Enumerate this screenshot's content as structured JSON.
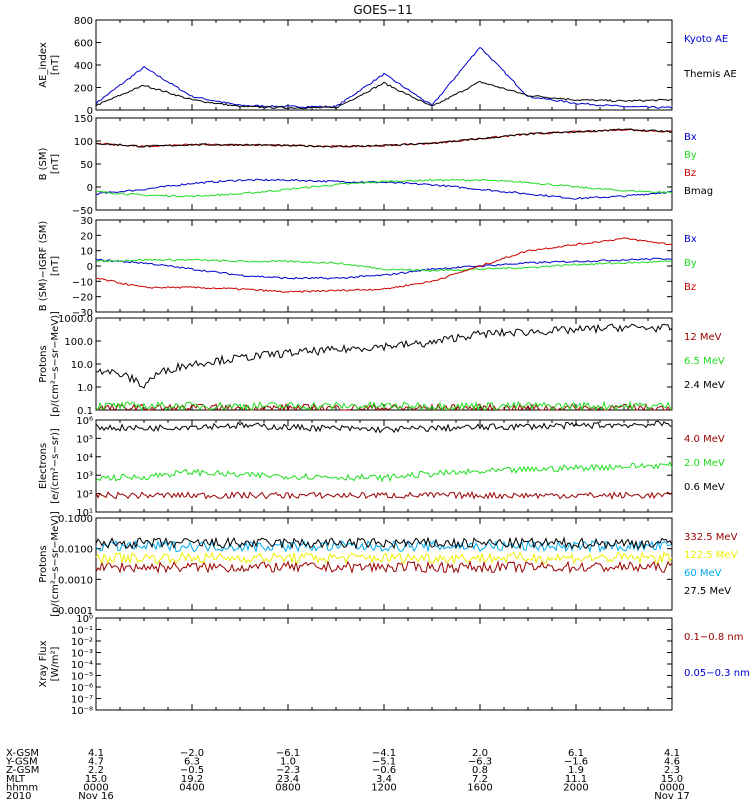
{
  "title": "GOES−11",
  "colors": {
    "black": "#000000",
    "blue": "#0000cc",
    "red": "#cc0000",
    "green": "#22dd22",
    "darkred": "#990000",
    "yellow": "#eeee00",
    "cyan": "#00aaee"
  },
  "panels": [
    {
      "id": "ae",
      "ylabel": [
        "AE_index",
        "[nT]"
      ],
      "yticks": [
        "800",
        "600",
        "400",
        "200",
        "0"
      ],
      "ylim": [
        0,
        800
      ],
      "scale": "linear",
      "legend": [
        {
          "label": "Kyoto AE",
          "color": "#0000cc"
        },
        {
          "label": "Themis AE",
          "color": "#000000"
        }
      ]
    },
    {
      "id": "bsm",
      "ylabel": [
        "B (SM)",
        "[nT]"
      ],
      "yticks": [
        "150",
        "100",
        "50",
        "0",
        "−50"
      ],
      "ylim": [
        -50,
        150
      ],
      "scale": "linear",
      "legend": [
        {
          "label": "Bx",
          "color": "#0000cc"
        },
        {
          "label": "By",
          "color": "#22dd22"
        },
        {
          "label": "Bz",
          "color": "#cc0000"
        },
        {
          "label": "Bmag",
          "color": "#000000"
        }
      ]
    },
    {
      "id": "bigrf",
      "ylabel": [
        "B (SM)−IGRF (SM)",
        "[nT]"
      ],
      "yticks": [
        "30",
        "20",
        "10",
        "0",
        "−10",
        "−20",
        "−30"
      ],
      "ylim": [
        -30,
        30
      ],
      "scale": "linear",
      "legend": [
        {
          "label": "Bx",
          "color": "#0000cc"
        },
        {
          "label": "By",
          "color": "#22dd22"
        },
        {
          "label": "Bz",
          "color": "#cc0000"
        }
      ]
    },
    {
      "id": "protons1",
      "ylabel": [
        "Protons",
        "[p/(cm²−s−sr−MeV)]"
      ],
      "yticks": [
        "1000.0",
        "100.0",
        "10.0",
        "1.0",
        "0.1"
      ],
      "ylim": [
        0.1,
        1000
      ],
      "scale": "log",
      "legend": [
        {
          "label": "12 MeV",
          "color": "#990000"
        },
        {
          "label": "6.5 MeV",
          "color": "#22dd22"
        },
        {
          "label": "2.4 MeV",
          "color": "#000000"
        }
      ]
    },
    {
      "id": "electrons",
      "ylabel": [
        "Electrons",
        "[e/(cm²−s−sr)]"
      ],
      "yticks": [
        "10⁶",
        "10⁵",
        "10⁴",
        "10³",
        "10²",
        "10¹"
      ],
      "ylim": [
        10,
        1000000
      ],
      "scale": "log",
      "legend": [
        {
          "label": "4.0 MeV",
          "color": "#990000"
        },
        {
          "label": "2.0 MeV",
          "color": "#22dd22"
        },
        {
          "label": "0.6 MeV",
          "color": "#000000"
        }
      ]
    },
    {
      "id": "protons2",
      "ylabel": [
        "Protons",
        "[p/(cm²−s−sr−MeV)]"
      ],
      "yticks": [
        "0.1000",
        "0.0100",
        "0.0010",
        "0.0001"
      ],
      "ylim": [
        0.0001,
        0.1
      ],
      "scale": "log",
      "legend": [
        {
          "label": "332.5 MeV",
          "color": "#990000"
        },
        {
          "label": "122.5 MeV",
          "color": "#eeee00"
        },
        {
          "label": "60 MeV",
          "color": "#00aaee"
        },
        {
          "label": "27.5 MeV",
          "color": "#000000"
        }
      ]
    },
    {
      "id": "xray",
      "ylabel": [
        "Xray Flux",
        "[W/m²]"
      ],
      "yticks": [
        "10⁰",
        "10⁻¹",
        "10⁻²",
        "10⁻³",
        "10⁻⁴",
        "10⁻⁵",
        "10⁻⁶",
        "10⁻⁷",
        "10⁻⁸"
      ],
      "ylim": [
        1e-08,
        1
      ],
      "scale": "log",
      "legend": [
        {
          "label": "0.1−0.8 nm",
          "color": "#990000"
        },
        {
          "label": "0.05−0.3 nm",
          "color": "#0000cc"
        }
      ]
    }
  ],
  "xaxis": {
    "rows": [
      {
        "label": "X-GSM",
        "values": [
          "4.1",
          "−2.0",
          "−6.1",
          "−4.1",
          "2.0",
          "6.1",
          "4.1"
        ]
      },
      {
        "label": "Y-GSM",
        "values": [
          "4.7",
          "6.3",
          "1.0",
          "−5.1",
          "−6.3",
          "−1.6",
          "4.6"
        ]
      },
      {
        "label": "Z-GSM",
        "values": [
          "2.2",
          "−0.5",
          "−2.3",
          "−0.6",
          "0.8",
          "1.9",
          "2.3"
        ]
      },
      {
        "label": "MLT",
        "values": [
          "15.0",
          "19.2",
          "23.4",
          "3.4",
          "7.2",
          "11.1",
          "15.0"
        ]
      },
      {
        "label": "hhmm",
        "values": [
          "0000",
          "0400",
          "0800",
          "1200",
          "1600",
          "2000",
          "0000"
        ]
      },
      {
        "label": "2010",
        "values": [
          "Nov 16",
          "",
          "",
          "",
          "",
          "",
          "Nov 17"
        ]
      }
    ]
  },
  "chart_data": {
    "type": "line",
    "title": "GOES−11",
    "x_hours": [
      0,
      2,
      4,
      6,
      8,
      10,
      12,
      14,
      16,
      18,
      20,
      22,
      24
    ],
    "x_ticks_hhmm": [
      "0000",
      "0400",
      "0800",
      "1200",
      "1600",
      "2000",
      "0000"
    ],
    "date_range": [
      "Nov 16 2010",
      "Nov 17 2010"
    ],
    "panels": [
      {
        "id": "ae",
        "ylim": [
          0,
          800
        ],
        "series": [
          {
            "name": "Kyoto AE",
            "values": [
              60,
              380,
              120,
              40,
              30,
              30,
              320,
              40,
              560,
              120,
              60,
              30,
              20
            ]
          },
          {
            "name": "Themis AE",
            "values": [
              40,
              220,
              90,
              30,
              20,
              20,
              240,
              30,
              250,
              130,
              90,
              80,
              90
            ]
          }
        ]
      },
      {
        "id": "bsm",
        "ylim": [
          -50,
          150
        ],
        "series": [
          {
            "name": "Bx",
            "values": [
              -15,
              -5,
              8,
              15,
              15,
              12,
              10,
              5,
              -5,
              -15,
              -25,
              -20,
              -10
            ]
          },
          {
            "name": "By",
            "values": [
              -10,
              -18,
              -20,
              -15,
              -5,
              5,
              12,
              15,
              15,
              10,
              0,
              -8,
              -12
            ]
          },
          {
            "name": "Bz",
            "values": [
              95,
              88,
              92,
              92,
              90,
              88,
              90,
              95,
              105,
              115,
              120,
              125,
              120
            ]
          },
          {
            "name": "Bmag",
            "values": [
              95,
              88,
              92,
              92,
              90,
              88,
              90,
              95,
              105,
              115,
              120,
              125,
              120
            ]
          }
        ]
      },
      {
        "id": "bigrf",
        "ylim": [
          -30,
          30
        ],
        "series": [
          {
            "name": "Bx",
            "values": [
              4,
              2,
              -2,
              -6,
              -8,
              -8,
              -6,
              -2,
              0,
              2,
              3,
              4,
              5
            ]
          },
          {
            "name": "By",
            "values": [
              3,
              4,
              4,
              3,
              3,
              2,
              -2,
              -3,
              -2,
              -1,
              1,
              2,
              3
            ]
          },
          {
            "name": "Bz",
            "values": [
              -8,
              -14,
              -14,
              -15,
              -17,
              -16,
              -15,
              -10,
              0,
              10,
              14,
              18,
              14
            ]
          }
        ]
      },
      {
        "id": "protons1",
        "ylim": [
          0.1,
          1000
        ],
        "scale": "log",
        "series": [
          {
            "name": "12 MeV",
            "values": [
              0.12,
              0.12,
              0.12,
              0.12,
              0.12,
              0.12,
              0.12,
              0.12,
              0.12,
              0.12,
              0.12,
              0.12,
              0.12
            ]
          },
          {
            "name": "6.5 MeV",
            "values": [
              0.15,
              0.15,
              0.15,
              0.15,
              0.15,
              0.15,
              0.15,
              0.15,
              0.15,
              0.15,
              0.15,
              0.15,
              0.15
            ]
          },
          {
            "name": "2.4 MeV",
            "values": [
              6,
              1,
              10,
              18,
              30,
              40,
              60,
              80,
              200,
              250,
              300,
              400,
              350
            ]
          }
        ]
      },
      {
        "id": "electrons",
        "ylim": [
          10,
          1000000
        ],
        "scale": "log",
        "series": [
          {
            "name": "4.0 MeV",
            "values": [
              80,
              80,
              80,
              80,
              80,
              80,
              80,
              80,
              80,
              80,
              80,
              80,
              80
            ]
          },
          {
            "name": "2.0 MeV",
            "values": [
              700,
              800,
              1500,
              1000,
              900,
              800,
              700,
              1200,
              1500,
              2000,
              2500,
              3000,
              3500
            ]
          },
          {
            "name": "0.6 MeV",
            "values": [
              400000,
              350000,
              450000,
              500000,
              400000,
              350000,
              300000,
              350000,
              400000,
              450000,
              500000,
              550000,
              600000
            ]
          }
        ]
      },
      {
        "id": "protons2",
        "ylim": [
          0.0001,
          0.1
        ],
        "scale": "log",
        "series": [
          {
            "name": "332.5 MeV",
            "values": [
              0.0025,
              0.0025,
              0.0025,
              0.0025,
              0.0025,
              0.0025,
              0.0025,
              0.0025,
              0.0025,
              0.0025,
              0.0025,
              0.0025,
              0.0025
            ]
          },
          {
            "name": "122.5 MeV",
            "values": [
              0.005,
              0.005,
              0.005,
              0.005,
              0.005,
              0.005,
              0.005,
              0.005,
              0.005,
              0.005,
              0.005,
              0.005,
              0.005
            ]
          },
          {
            "name": "60 MeV",
            "values": [
              0.012,
              0.012,
              0.012,
              0.012,
              0.012,
              0.012,
              0.012,
              0.012,
              0.012,
              0.012,
              0.012,
              0.012,
              0.012
            ]
          },
          {
            "name": "27.5 MeV",
            "values": [
              0.015,
              0.015,
              0.015,
              0.015,
              0.015,
              0.015,
              0.015,
              0.015,
              0.015,
              0.015,
              0.015,
              0.015,
              0.015
            ]
          }
        ]
      },
      {
        "id": "xray",
        "ylim": [
          1e-08,
          1
        ],
        "scale": "log",
        "series": [
          {
            "name": "0.1−0.8 nm",
            "values": []
          },
          {
            "name": "0.05−0.3 nm",
            "values": []
          }
        ]
      }
    ]
  }
}
